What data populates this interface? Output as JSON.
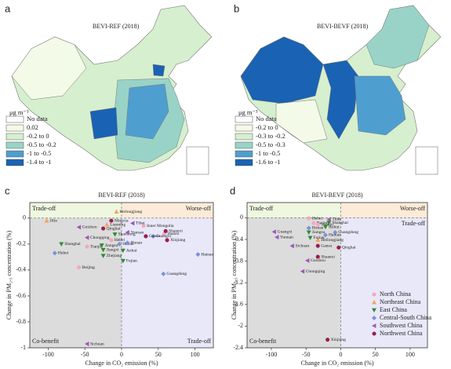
{
  "maps": [
    {
      "panel": "a",
      "title": "BEVI-REF (2018)",
      "unit": "μg m⁻³",
      "legend": [
        {
          "label": "No data",
          "color": "#ffffff"
        },
        {
          "label": "0.02",
          "color": "#f3fae8"
        },
        {
          "label": "-0.2 to 0",
          "color": "#d6efcf"
        },
        {
          "label": "-0.5 to -0.2",
          "color": "#99d3c7"
        },
        {
          "label": "-1 to -0.5",
          "color": "#4e9fcf"
        },
        {
          "label": "-1.4 to -1",
          "color": "#1a62b3"
        }
      ]
    },
    {
      "panel": "b",
      "title": "BEVI-BEVF (2018)",
      "unit": "μg m⁻³",
      "legend": [
        {
          "label": "No data",
          "color": "#ffffff"
        },
        {
          "label": "-0.2 to 0",
          "color": "#f3fae8"
        },
        {
          "label": "-0.3 to -0.2",
          "color": "#d6efcf"
        },
        {
          "label": "-0.5 to -0.3",
          "color": "#99d3c7"
        },
        {
          "label": "-1 to -0.5",
          "color": "#4e9fcf"
        },
        {
          "label": "-1.6 to -1",
          "color": "#1a62b3"
        }
      ]
    }
  ],
  "chart_data": [
    {
      "type": "scatter",
      "panel": "c",
      "title": "BEVI-REF (2018)",
      "x_label": "Change in CO₂ emission (%)",
      "y_label": "Change in PM₂.₅ concentration (%)",
      "xlim": [
        -125,
        125
      ],
      "ylim": [
        -1,
        0.12
      ],
      "xticks": [
        -100,
        -50,
        0,
        50,
        100
      ],
      "yticks": [
        0,
        -0.2,
        -0.4,
        -0.6,
        -0.8,
        -1
      ],
      "annotations": [
        {
          "text": "Trade-off",
          "quadrant": "upper left"
        },
        {
          "text": "Worse-off",
          "quadrant": "upper right"
        },
        {
          "text": "Co-benefit",
          "quadrant": "lower left"
        },
        {
          "text": "Trade-off",
          "quadrant": "lower right"
        }
      ],
      "series": [
        {
          "name": "North China",
          "color": "#f2a9c0",
          "marker": "circle",
          "labels": [
            "Inner Mongolia",
            "Shanxi",
            "Hebei",
            "Tianjin",
            "Beijing"
          ],
          "x": [
            30,
            58,
            -14,
            -47,
            -58
          ],
          "values": [
            -0.06,
            -0.12,
            -0.17,
            -0.22,
            -0.38
          ]
        },
        {
          "name": "Northeast China",
          "color": "#f4a261",
          "marker": "triangle-up",
          "labels": [
            "Heilongjiang",
            "Jilin",
            "Liaoning"
          ],
          "x": [
            -7,
            -102,
            -20
          ],
          "values": [
            0.05,
            -0.02,
            -0.05
          ]
        },
        {
          "name": "East China",
          "color": "#2e8b2e",
          "marker": "triangle-down",
          "labels": [
            "Shandong",
            "Jiangsu",
            "Shanghai",
            "Jiangxi",
            "Anhui",
            "Zhejiang",
            "Fujian"
          ],
          "x": [
            -9,
            -27,
            -82,
            -25,
            2,
            -25,
            2
          ],
          "values": [
            -0.125,
            -0.21,
            -0.2,
            -0.245,
            -0.25,
            -0.29,
            -0.33
          ]
        },
        {
          "name": "Central-South China",
          "color": "#7b8fe0",
          "marker": "diamond",
          "labels": [
            "Henan",
            "Hunan",
            "Guangxi",
            "Hubei",
            "Hainan",
            "Guangdong"
          ],
          "x": [
            -3,
            8,
            43,
            -91,
            104,
            57
          ],
          "values": [
            -0.2,
            -0.19,
            -0.14,
            -0.27,
            -0.28,
            -0.43
          ]
        },
        {
          "name": "Southwest China",
          "color": "#9b59b6",
          "marker": "triangle-left",
          "labels": [
            "Guizhou",
            "Tibet",
            "Chongqing",
            "Yunnan",
            "Sichuan"
          ],
          "x": [
            -58,
            15,
            -47,
            8,
            -47
          ],
          "values": [
            -0.07,
            -0.04,
            -0.15,
            -0.11,
            -0.97
          ]
        },
        {
          "name": "Northwest China",
          "color": "#9b1b4e",
          "marker": "circle",
          "labels": [
            "Ningxia",
            "Qinghai",
            "Gansu",
            "Xinjiang",
            "Shaanxi"
          ],
          "x": [
            -14,
            -25,
            33,
            62,
            60
          ],
          "values": [
            -0.02,
            -0.08,
            -0.14,
            -0.17,
            -0.1
          ]
        }
      ]
    },
    {
      "type": "scatter",
      "panel": "d",
      "title": "BEVI-BEVF (2018)",
      "x_label": "Change in CO₂ emission (%)",
      "y_label": "Change in PM₂.₅ concentration (%)",
      "xlim": [
        -135,
        125
      ],
      "ylim": [
        -2.4,
        0.28
      ],
      "xticks": [
        -100,
        -50,
        0,
        50,
        100
      ],
      "yticks": [
        0,
        -0.4,
        -0.8,
        -1.2,
        -1.6,
        -2,
        -2.4
      ],
      "legend": "lower right",
      "annotations": [
        {
          "text": "Trade-off",
          "quadrant": "upper left"
        },
        {
          "text": "Worse-off",
          "quadrant": "upper right"
        },
        {
          "text": "Co-benefit",
          "quadrant": "lower left"
        },
        {
          "text": "Trade-off",
          "quadrant": "lower right"
        }
      ],
      "series": [
        {
          "name": "North China",
          "color": "#f2a9c0",
          "marker": "circle",
          "labels": [
            "Hebei",
            "Beijing",
            "Tianjin"
          ],
          "x": [
            -46,
            -39,
            -33
          ],
          "values": [
            -0.01,
            -0.1,
            -0.13
          ]
        },
        {
          "name": "Northeast China",
          "color": "#f4a261",
          "marker": "triangle-up",
          "labels": [
            "Heilongjiang"
          ],
          "x": [
            -33
          ],
          "values": [
            -0.41
          ]
        },
        {
          "name": "East China",
          "color": "#2e8b2e",
          "marker": "triangle-down",
          "labels": [
            "Shanghai",
            "Jiangsu",
            "Anhui",
            "Fujian"
          ],
          "x": [
            -17,
            -46,
            -22,
            -44
          ],
          "values": [
            -0.09,
            -0.27,
            -0.17,
            -0.37
          ]
        },
        {
          "name": "Central-South China",
          "color": "#7b8fe0",
          "marker": "diamond",
          "labels": [
            "Hunan",
            "Guangdong",
            "Hainan"
          ],
          "x": [
            -46,
            -8,
            -22
          ],
          "values": [
            -0.19,
            -0.27,
            -0.32
          ]
        },
        {
          "name": "Southwest China",
          "color": "#9b59b6",
          "marker": "triangle-left",
          "labels": [
            "Tibet",
            "Guangxi",
            "Yunnan",
            "Sichuan",
            "Guizhou",
            "Chongqing"
          ],
          "x": [
            -17,
            -96,
            -92,
            -70,
            -48,
            -55
          ],
          "values": [
            -0.03,
            -0.26,
            -0.36,
            -0.52,
            -0.79,
            -0.99
          ]
        },
        {
          "name": "Northwest China",
          "color": "#9b1b4e",
          "marker": "circle",
          "labels": [
            "Gansu",
            "Shaanxi",
            "Qinghai",
            "Xinjiang"
          ],
          "x": [
            -33,
            -33,
            -3,
            -19
          ],
          "values": [
            -0.52,
            -0.72,
            -0.55,
            -2.25
          ]
        }
      ]
    }
  ]
}
